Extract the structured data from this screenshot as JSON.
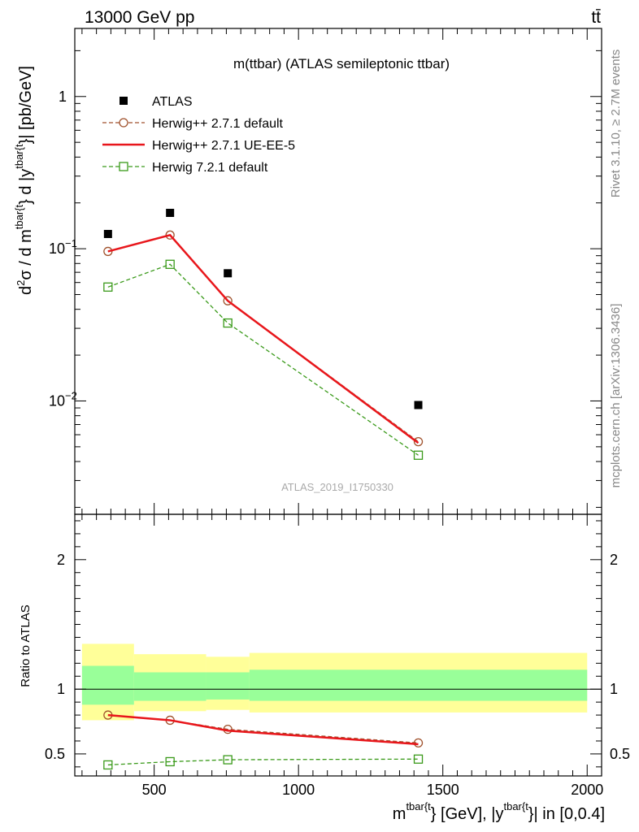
{
  "header": {
    "left": "13000 GeV pp",
    "right": "tt̄"
  },
  "side_labels": {
    "rivet": "Rivet 3.1.10, ≥ 2.7M events",
    "mcplots": "mcplots.cern.ch [arXiv:1306.3436]"
  },
  "watermark": "ATLAS_2019_I1750330",
  "chart_data": [
    {
      "type": "scatter",
      "title": "m(ttbar) (ATLAS semileptonic ttbar)",
      "ylabel_parts": [
        "d",
        "2",
        "σ / d m",
        "tbar{t",
        "} d |y",
        "tbar{t",
        "}| [pb/GeV]"
      ],
      "xscale": "linear",
      "yscale": "log",
      "xlim": [
        225,
        2050
      ],
      "ylim": [
        0.0018,
        2.8
      ],
      "yticks_major": [
        0.01,
        0.1,
        1
      ],
      "ytick_labels": [
        {
          "base": "10",
          "exp": "−2"
        },
        {
          "base": "10",
          "exp": "−1"
        },
        {
          "base": "1",
          "exp": ""
        }
      ],
      "legend_position": "top-left",
      "series": [
        {
          "name": "ATLAS",
          "marker": "square-filled",
          "color": "#000000",
          "line": "none",
          "x": [
            340,
            555,
            755,
            1415
          ],
          "y": [
            0.125,
            0.172,
            0.069,
            0.0094
          ]
        },
        {
          "name": "Herwig++ 2.7.1 default",
          "marker": "circle-open",
          "color": "#a0522d",
          "line": "dashed",
          "x": [
            340,
            555,
            755,
            1415
          ],
          "y": [
            0.096,
            0.123,
            0.0455,
            0.0054
          ]
        },
        {
          "name": "Herwig++ 2.7.1 UE-EE-5",
          "marker": "none",
          "color": "#e8161b",
          "line": "solid",
          "x": [
            340,
            555,
            755,
            1415
          ],
          "y": [
            0.096,
            0.123,
            0.0455,
            0.0053
          ]
        },
        {
          "name": "Herwig 7.2.1 default",
          "marker": "square-open",
          "color": "#3a9a1a",
          "line": "dashed",
          "x": [
            340,
            555,
            755,
            1415
          ],
          "y": [
            0.056,
            0.079,
            0.0325,
            0.0044
          ]
        }
      ]
    },
    {
      "type": "scatter",
      "ylabel": "Ratio to ATLAS",
      "xlabel_parts": [
        "m",
        "tbar{t",
        "} [GeV], |y",
        "tbar{t",
        "}| in [0,0.4]"
      ],
      "xlim": [
        225,
        2050
      ],
      "ylim": [
        0.33,
        2.35
      ],
      "xticks": [
        500,
        1000,
        1500,
        2000
      ],
      "xtick_labels": [
        "500",
        "1000",
        "1500",
        "2000"
      ],
      "yticks": [
        0.5,
        1,
        2
      ],
      "ytick_labels": [
        "0.5",
        "1",
        "2"
      ],
      "bands": [
        {
          "xmin": 250,
          "xmax": 430,
          "inner": [
            0.88,
            1.18
          ],
          "outer": [
            0.76,
            1.35
          ]
        },
        {
          "xmin": 430,
          "xmax": 680,
          "inner": [
            0.91,
            1.13
          ],
          "outer": [
            0.83,
            1.27
          ]
        },
        {
          "xmin": 680,
          "xmax": 830,
          "inner": [
            0.92,
            1.13
          ],
          "outer": [
            0.84,
            1.25
          ]
        },
        {
          "xmin": 830,
          "xmax": 2000,
          "inner": [
            0.91,
            1.15
          ],
          "outer": [
            0.82,
            1.28
          ]
        }
      ],
      "series": [
        {
          "name": "Herwig++ 2.7.1 default",
          "color": "#a0522d",
          "line": "dashed",
          "marker": "circle-open",
          "x": [
            340,
            555,
            755,
            1415
          ],
          "y": [
            0.8,
            0.76,
            0.69,
            0.585
          ]
        },
        {
          "name": "Herwig++ 2.7.1 UE-EE-5",
          "color": "#e8161b",
          "line": "solid",
          "marker": "none",
          "x": [
            340,
            555,
            755,
            1415
          ],
          "y": [
            0.8,
            0.76,
            0.68,
            0.575
          ]
        },
        {
          "name": "Herwig 7.2.1 default",
          "color": "#3a9a1a",
          "line": "dashed",
          "marker": "square-open",
          "x": [
            340,
            555,
            755,
            1415
          ],
          "y": [
            0.415,
            0.44,
            0.455,
            0.46
          ]
        }
      ]
    }
  ]
}
